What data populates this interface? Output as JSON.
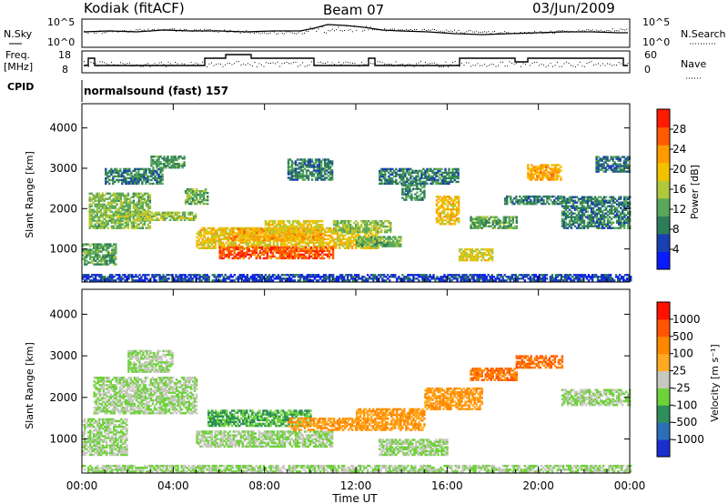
{
  "header": {
    "station": "Kodiak (fitACF)",
    "beam": "Beam 07",
    "date": "03/Jun/2009"
  },
  "top_panels": {
    "nsky_label": "N.Sky",
    "nsearch_label": "N.Search",
    "nsky_ticks": [
      "10^5",
      "10^0"
    ],
    "nsearch_ticks": [
      "10^5",
      "10^0"
    ],
    "freq_label_1": "Freq.",
    "freq_label_2": "[MHz]",
    "freq_ticks": [
      "18",
      "8"
    ],
    "nave_label": "Nave",
    "nave_ticks": [
      "60",
      "0"
    ],
    "cpid_label": "CPID",
    "cpid_value": "normalsound (fast) 157"
  },
  "chart_data": [
    {
      "type": "heatmap",
      "parameter": "power",
      "ylabel": "Slant Range [km]",
      "ylim": [
        180,
        4600
      ],
      "yticks": [
        1000,
        2000,
        3000,
        4000
      ],
      "xlim": [
        0,
        24
      ],
      "xticks": [
        "00:00",
        "04:00",
        "08:00",
        "12:00",
        "16:00",
        "20:00",
        "00:00"
      ],
      "colorbar": {
        "label": "Power [dB]",
        "ticks": [
          "28",
          "24",
          "20",
          "16",
          "12",
          "8",
          "4"
        ],
        "colors": [
          "#0a1aff",
          "#1a3fb0",
          "#2e7d5a",
          "#5aa95a",
          "#b0c83a",
          "#f2c200",
          "#ff9a00",
          "#ff5a00",
          "#ff1a00"
        ],
        "range": [
          0,
          32
        ]
      },
      "regions": [
        {
          "t": [
            0.0,
            24.0
          ],
          "r": [
            200,
            350
          ],
          "v": 5
        },
        {
          "t": [
            0.0,
            1.5
          ],
          "r": [
            600,
            1100
          ],
          "v": 12
        },
        {
          "t": [
            0.3,
            3.0
          ],
          "r": [
            1500,
            2400
          ],
          "v": 14
        },
        {
          "t": [
            1.0,
            3.5
          ],
          "r": [
            2600,
            3000
          ],
          "v": 9
        },
        {
          "t": [
            1.5,
            5.0
          ],
          "r": [
            1700,
            1900
          ],
          "v": 15
        },
        {
          "t": [
            3.0,
            4.5
          ],
          "r": [
            3000,
            3300
          ],
          "v": 11
        },
        {
          "t": [
            4.5,
            5.5
          ],
          "r": [
            2100,
            2500
          ],
          "v": 13
        },
        {
          "t": [
            5.0,
            13.0
          ],
          "r": [
            1000,
            1500
          ],
          "v": 19
        },
        {
          "t": [
            6.0,
            11.0
          ],
          "r": [
            750,
            1050
          ],
          "v": 27
        },
        {
          "t": [
            6.5,
            10.5
          ],
          "r": [
            1200,
            1500
          ],
          "v": 22
        },
        {
          "t": [
            8.0,
            10.5
          ],
          "r": [
            1400,
            1700
          ],
          "v": 18
        },
        {
          "t": [
            9.0,
            11.0
          ],
          "r": [
            2700,
            3200
          ],
          "v": 9
        },
        {
          "t": [
            11.0,
            13.5
          ],
          "r": [
            1400,
            1700
          ],
          "v": 15
        },
        {
          "t": [
            12.0,
            14.0
          ],
          "r": [
            1050,
            1300
          ],
          "v": 13
        },
        {
          "t": [
            13.0,
            16.5
          ],
          "r": [
            2600,
            3000
          ],
          "v": 9
        },
        {
          "t": [
            14.0,
            15.0
          ],
          "r": [
            2200,
            2600
          ],
          "v": 10
        },
        {
          "t": [
            15.5,
            16.5
          ],
          "r": [
            1600,
            2300
          ],
          "v": 20
        },
        {
          "t": [
            16.5,
            18.0
          ],
          "r": [
            700,
            1000
          ],
          "v": 18
        },
        {
          "t": [
            17.0,
            19.0
          ],
          "r": [
            1500,
            1800
          ],
          "v": 12
        },
        {
          "t": [
            18.5,
            21.0
          ],
          "r": [
            2100,
            2300
          ],
          "v": 9
        },
        {
          "t": [
            19.5,
            21.0
          ],
          "r": [
            2700,
            3100
          ],
          "v": 22
        },
        {
          "t": [
            21.0,
            24.0
          ],
          "r": [
            1500,
            2300
          ],
          "v": 9
        },
        {
          "t": [
            22.5,
            24.0
          ],
          "r": [
            2900,
            3300
          ],
          "v": 8
        }
      ]
    },
    {
      "type": "heatmap",
      "parameter": "velocity",
      "ylabel": "Slant Range [km]",
      "xlabel": "Time UT",
      "ylim": [
        180,
        4600
      ],
      "yticks": [
        1000,
        2000,
        3000,
        4000
      ],
      "xlim": [
        0,
        24
      ],
      "xticks": [
        "00:00",
        "04:00",
        "08:00",
        "12:00",
        "16:00",
        "20:00",
        "00:00"
      ],
      "colorbar": {
        "label": "Velocity [m s⁻¹]",
        "ticks": [
          "1000",
          "500",
          "100",
          "25",
          "-25",
          "-100",
          "-500",
          "-1000"
        ],
        "colors": [
          "#1a2ecf",
          "#2a6fb8",
          "#2e8f5a",
          "#6ed23a",
          "#c8c8c0",
          "#ffaa22",
          "#ff8800",
          "#ff5500",
          "#ff1100"
        ],
        "range": [
          0,
          9
        ]
      },
      "regions": [
        {
          "t": [
            0.0,
            24.0
          ],
          "r": [
            200,
            350
          ],
          "v": 4
        },
        {
          "t": [
            0.0,
            2.0
          ],
          "r": [
            600,
            1500
          ],
          "v": 4
        },
        {
          "t": [
            0.5,
            5.0
          ],
          "r": [
            1600,
            2500
          ],
          "v": 4
        },
        {
          "t": [
            2.0,
            4.0
          ],
          "r": [
            2600,
            3100
          ],
          "v": 4
        },
        {
          "t": [
            5.0,
            11.0
          ],
          "r": [
            800,
            1200
          ],
          "v": 4
        },
        {
          "t": [
            5.5,
            10.0
          ],
          "r": [
            1300,
            1700
          ],
          "v": 3
        },
        {
          "t": [
            9.0,
            12.0
          ],
          "r": [
            1200,
            1500
          ],
          "v": 6
        },
        {
          "t": [
            12.0,
            15.0
          ],
          "r": [
            1200,
            1700
          ],
          "v": 6
        },
        {
          "t": [
            15.0,
            17.5
          ],
          "r": [
            1700,
            2200
          ],
          "v": 6
        },
        {
          "t": [
            17.0,
            19.0
          ],
          "r": [
            2400,
            2700
          ],
          "v": 7
        },
        {
          "t": [
            19.0,
            21.0
          ],
          "r": [
            2700,
            3000
          ],
          "v": 7
        },
        {
          "t": [
            21.0,
            24.0
          ],
          "r": [
            1800,
            2200
          ],
          "v": 4
        },
        {
          "t": [
            13.0,
            16.0
          ],
          "r": [
            600,
            1000
          ],
          "v": 4
        }
      ]
    }
  ]
}
